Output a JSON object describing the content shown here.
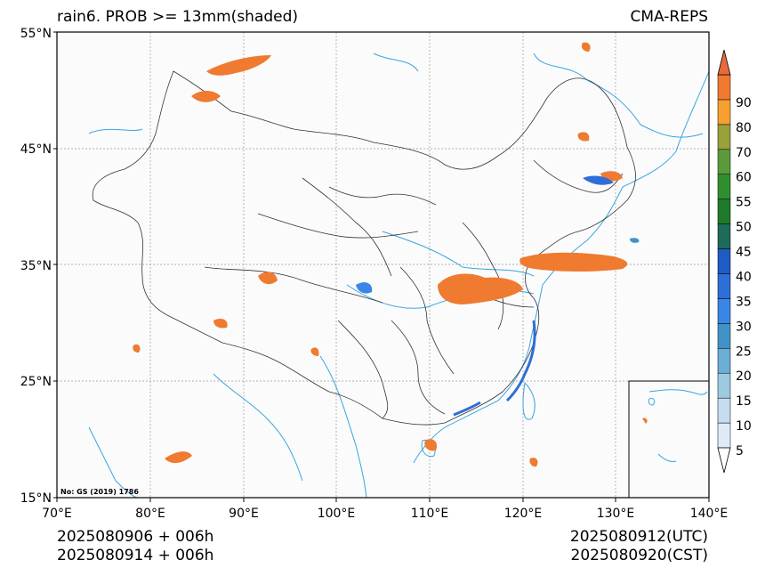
{
  "header": {
    "title_left": "rain6. PROB >= 13mm(shaded)",
    "title_right": "CMA-REPS"
  },
  "footer": {
    "init_time": "2025080906  +  006h",
    "init_time_cst": "2025080914  +  006h",
    "valid_utc": "2025080912(UTC)",
    "valid_cst": "2025080920(CST)"
  },
  "map": {
    "lon_ticks": [
      "70°E",
      "80°E",
      "90°E",
      "100°E",
      "110°E",
      "120°E",
      "130°E",
      "140°E"
    ],
    "lat_ticks": [
      "55°N",
      "45°N",
      "35°N",
      "25°N",
      "15°N"
    ],
    "lon_range": [
      70,
      140
    ],
    "lat_range": [
      15,
      55
    ],
    "credit": "No: GS (2019) 1786",
    "background_color": "#fbfbfb",
    "river_color": "#38a6e0",
    "border_color": "#333333"
  },
  "colorbar": {
    "levels": [
      "5",
      "10",
      "15",
      "20",
      "25",
      "30",
      "35",
      "40",
      "45",
      "50",
      "55",
      "60",
      "70",
      "80",
      "90"
    ],
    "colors": [
      "#deebf7",
      "#c6dbef",
      "#9ecae1",
      "#6baed6",
      "#4292c6",
      "#3a86e6",
      "#2f6ed8",
      "#1f5bc4",
      "#1d6b5a",
      "#1f7a2a",
      "#2f8f2f",
      "#5a9a3a",
      "#9aa03a",
      "#f5a030",
      "#ef7a30"
    ],
    "arrow_color": "#e86a3a"
  }
}
